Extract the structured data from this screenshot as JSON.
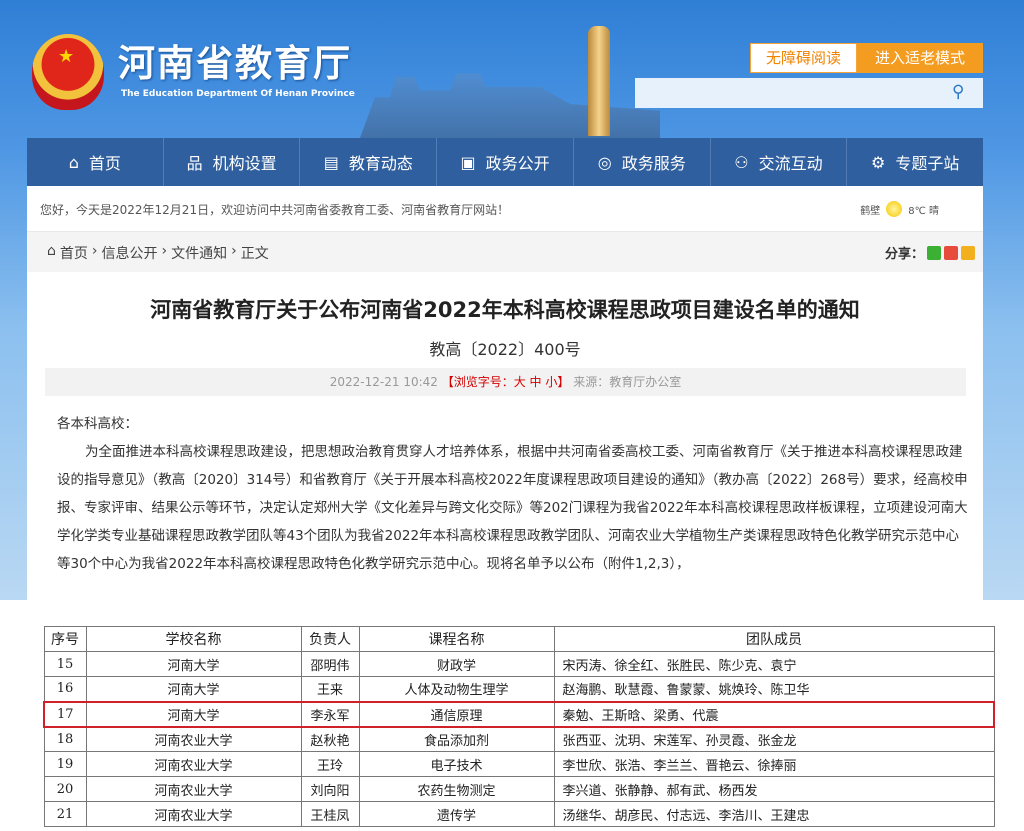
{
  "header": {
    "logo_title": "河南省教育厅",
    "logo_subtitle": "The Education Department Of Henan Province",
    "accessibility_label": "无障碍阅读",
    "elder_mode_label": "进入适老模式",
    "search_placeholder": ""
  },
  "nav": [
    {
      "label": "首页",
      "icon": "home-icon"
    },
    {
      "label": "机构设置",
      "icon": "org-icon"
    },
    {
      "label": "教育动态",
      "icon": "document-icon"
    },
    {
      "label": "政务公开",
      "icon": "file-icon"
    },
    {
      "label": "政务服务",
      "icon": "service-icon"
    },
    {
      "label": "交流互动",
      "icon": "chat-icon"
    },
    {
      "label": "专题子站",
      "icon": "settings-icon"
    }
  ],
  "welcome": {
    "text": "您好，今天是2022年12月21日，欢迎访问中共河南省委教育工委、河南省教育厅网站！",
    "city": "鹤壁",
    "weather": "8℃ 晴"
  },
  "breadcrumb": {
    "items": [
      "首页",
      "信息公开",
      "文件通知",
      "正文"
    ],
    "share_label": "分享："
  },
  "article": {
    "title": "河南省教育厅关于公布河南省2022年本科高校课程思政项目建设名单的通知",
    "doc_no": "教高〔2022〕400号",
    "date": "2022-12-21 10:42",
    "font_size_label": "【浏览字号：大 中 小】",
    "source": "来源：教育厅办公室",
    "salutation": "各本科高校：",
    "paragraph": "为全面推进本科高校课程思政建设，把思想政治教育贯穿人才培养体系，根据中共河南省委高校工委、河南省教育厅《关于推进本科高校课程思政建设的指导意见》（教高〔2020〕314号）和省教育厅《关于开展本科高校2022年度课程思政项目建设的通知》（教办高〔2022〕268号）要求，经高校申报、专家评审、结果公示等环节，决定认定郑州大学《文化差异与跨文化交际》等202门课程为我省2022年本科高校课程思政样板课程，立项建设河南大学化学类专业基础课程思政教学团队等43个团队为我省2022年本科高校课程思政教学团队、河南农业大学植物生产类课程思政特色化教学研究示范中心等30个中心为我省2022年本科高校课程思政特色化教学研究示范中心。现将名单予以公布（附件1,2,3），"
  },
  "table": {
    "headers": [
      "序号",
      "学校名称",
      "负责人",
      "课程名称",
      "团队成员"
    ],
    "rows": [
      [
        "15",
        "河南大学",
        "邵明伟",
        "财政学",
        "宋丙涛、徐全红、张胜民、陈少克、袁宁"
      ],
      [
        "16",
        "河南大学",
        "王来",
        "人体及动物生理学",
        "赵海鹏、耿慧霞、鲁蒙蒙、姚焕玲、陈卫华"
      ],
      [
        "17",
        "河南大学",
        "李永军",
        "通信原理",
        "秦勉、王斯晗、梁勇、代震"
      ],
      [
        "18",
        "河南农业大学",
        "赵秋艳",
        "食品添加剂",
        "张西亚、沈玥、宋莲军、孙灵霞、张金龙"
      ],
      [
        "19",
        "河南农业大学",
        "王玲",
        "电子技术",
        "李世欣、张浩、李兰兰、晋艳云、徐捧丽"
      ],
      [
        "20",
        "河南农业大学",
        "刘向阳",
        "农药生物测定",
        "李兴道、张静静、郝有武、杨西发"
      ],
      [
        "21",
        "河南农业大学",
        "王桂凤",
        "遗传学",
        "汤继华、胡彦民、付志远、李浩川、王建忠"
      ]
    ],
    "highlighted_row": "17",
    "highlight_color": "#d0202a"
  }
}
